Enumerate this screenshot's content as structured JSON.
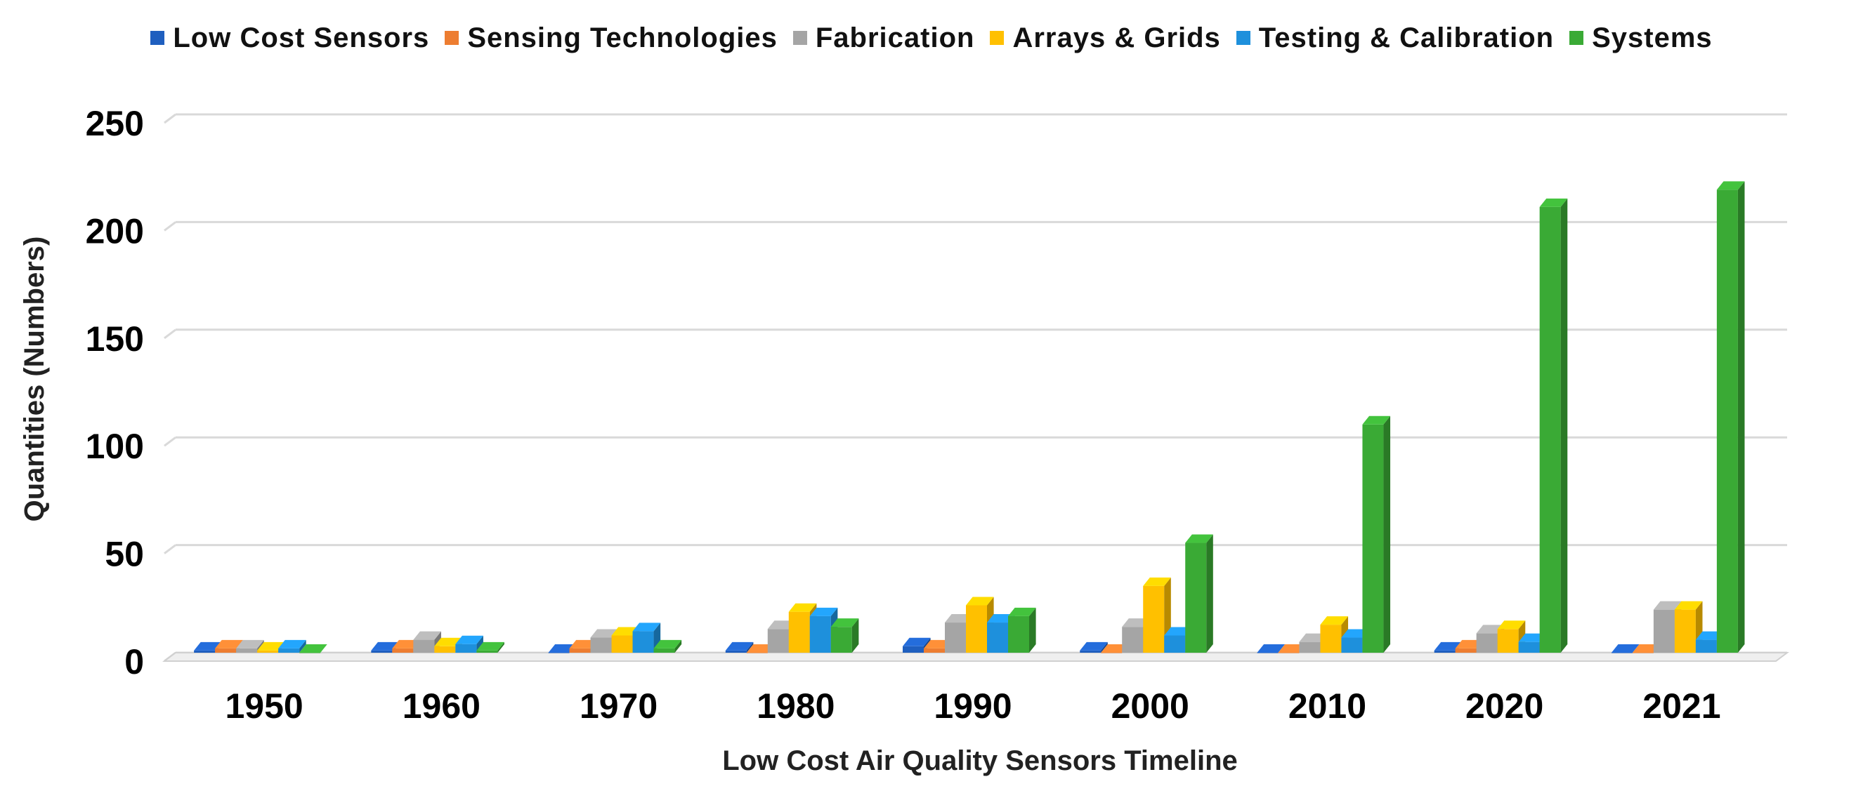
{
  "chart_data": {
    "type": "bar",
    "title": "",
    "categories": [
      "1950",
      "1960",
      "1970",
      "1980",
      "1990",
      "2000",
      "2010",
      "2020",
      "2021"
    ],
    "series": [
      {
        "name": "Low Cost Sensors",
        "color": "#1F5FBF",
        "values": [
          1,
          1,
          0,
          1,
          3,
          1,
          0,
          1,
          0
        ]
      },
      {
        "name": "Sensing Technologies",
        "color": "#ED7D31",
        "values": [
          2,
          2,
          2,
          0,
          2,
          0,
          0,
          2,
          0
        ]
      },
      {
        "name": "Fabrication",
        "color": "#A5A5A5",
        "values": [
          2,
          6,
          7,
          11,
          14,
          12,
          5,
          9,
          20
        ]
      },
      {
        "name": "Arrays & Grids",
        "color": "#FFC000",
        "values": [
          1,
          3,
          8,
          19,
          22,
          31,
          13,
          11,
          20
        ]
      },
      {
        "name": "Testing & Calibration",
        "color": "#1E90DC",
        "values": [
          2,
          4,
          10,
          17,
          14,
          8,
          7,
          5,
          6
        ]
      },
      {
        "name": "Systems",
        "color": "#3AAA35",
        "values": [
          0,
          1,
          2,
          12,
          17,
          51,
          106,
          207,
          215
        ]
      }
    ],
    "xlabel": "Low Cost Air Quality Sensors Timeline",
    "ylabel": "Quantities (Numbers)",
    "ylim": [
      0,
      250
    ],
    "yticks": [
      0,
      50,
      100,
      150,
      200,
      250
    ],
    "grid": true,
    "legend_position": "top"
  }
}
